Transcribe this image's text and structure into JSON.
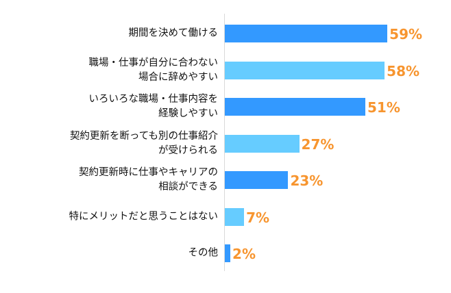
{
  "chart_data": {
    "type": "bar",
    "orientation": "horizontal",
    "categories": [
      "期間を決めて働ける",
      "職場・仕事が自分に合わない\n場合に辞めやすい",
      "いろいろな職場・仕事内容を\n経験しやすい",
      "契約更新を断っても別の仕事紹介\nが受けられる",
      "契約更新時に仕事やキャリアの\n相談ができる",
      "特にメリットだと思うことはない",
      "その他"
    ],
    "values": [
      59,
      58,
      51,
      27,
      23,
      7,
      2
    ],
    "value_labels": [
      "59%",
      "58%",
      "51%",
      "27%",
      "23%",
      "7%",
      "2%"
    ],
    "bar_colors": [
      "#3399ff",
      "#66ccff",
      "#3399ff",
      "#66ccff",
      "#3399ff",
      "#66ccff",
      "#3399ff"
    ],
    "label_color": "#f7952f",
    "grid": false,
    "legend": "none"
  }
}
